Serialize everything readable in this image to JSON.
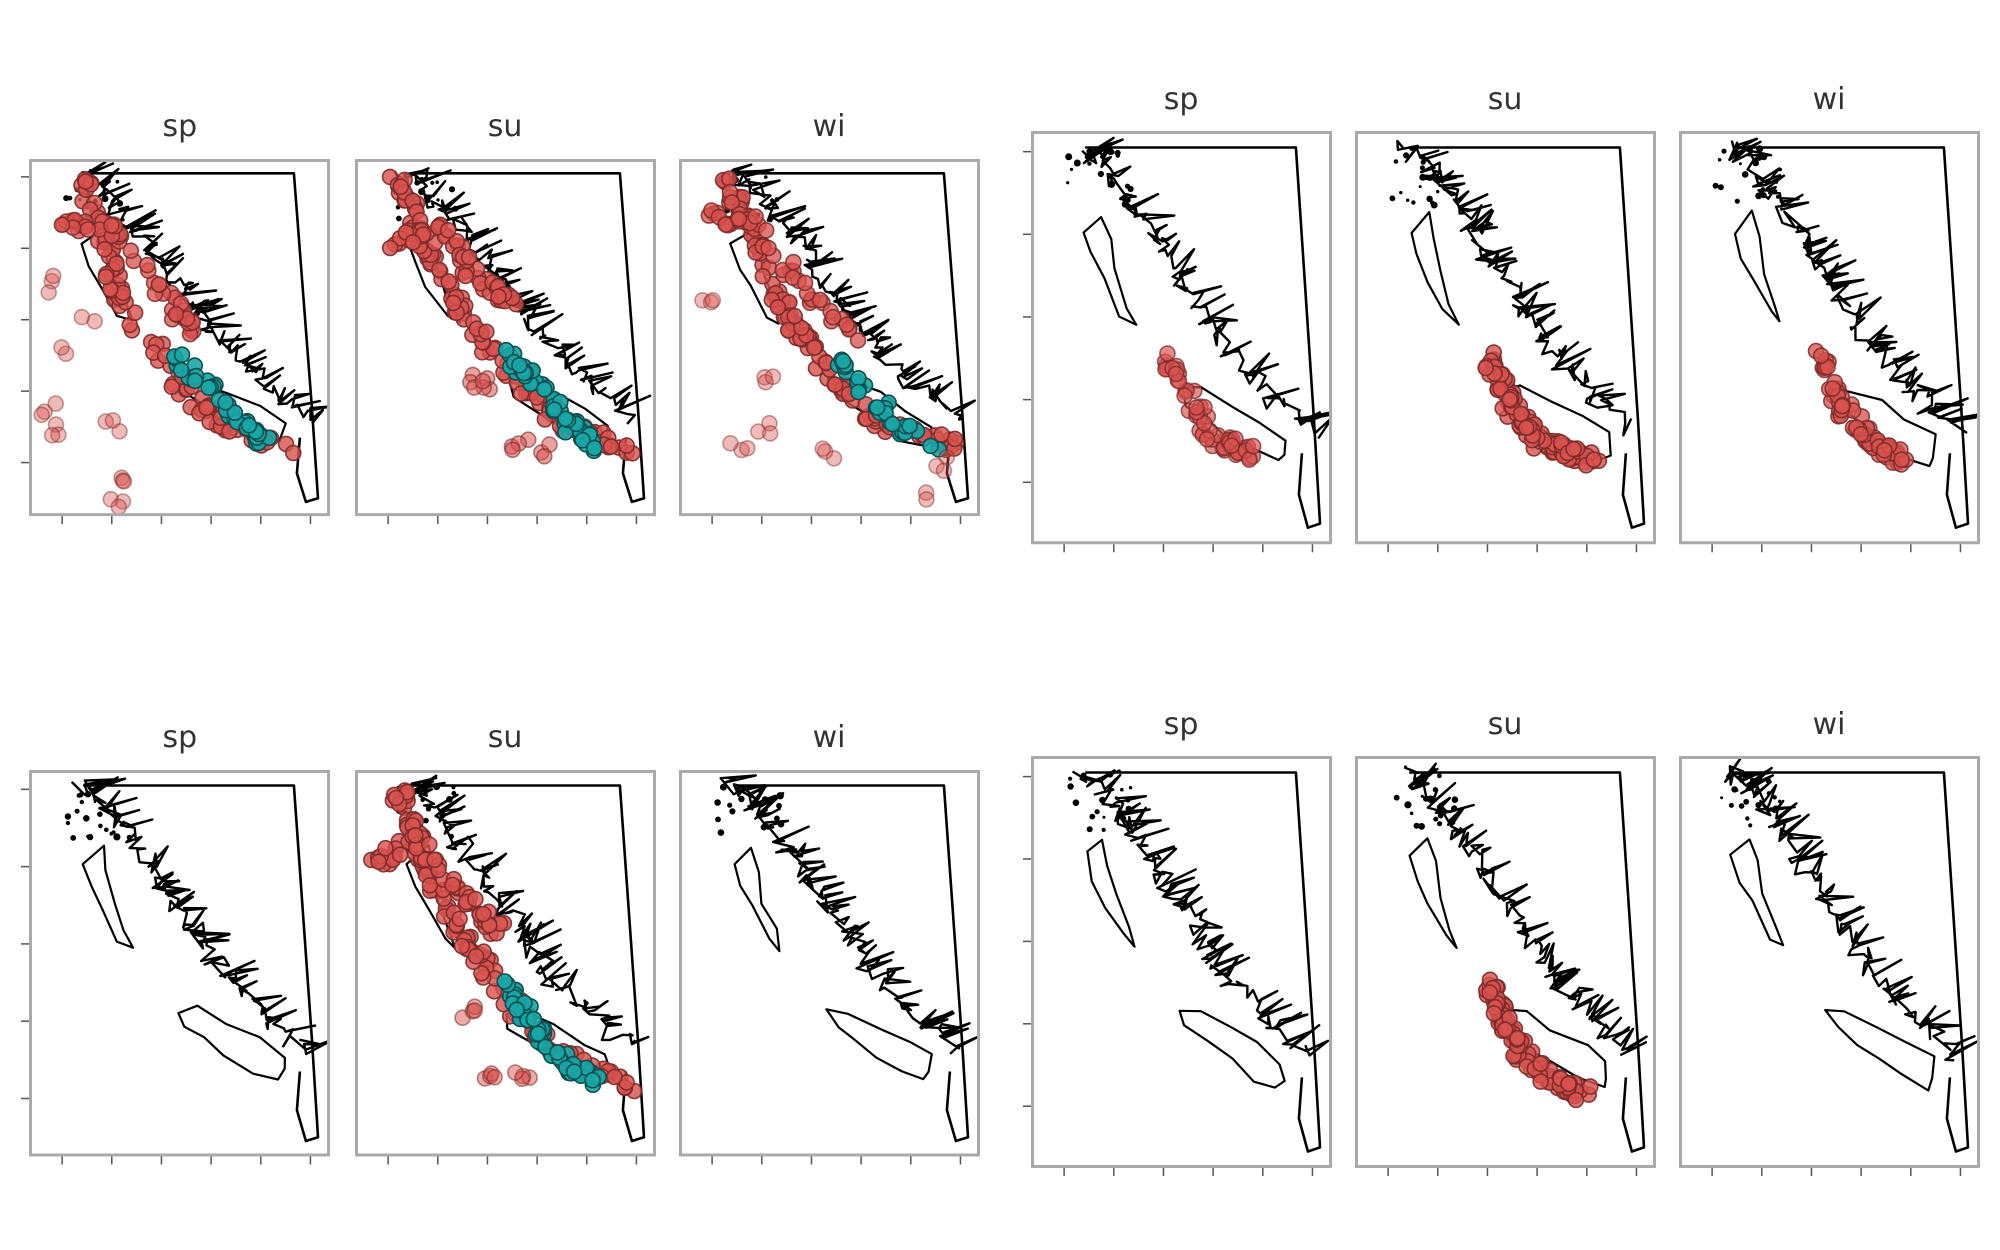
{
  "figure_groups": [
    {
      "name": "group-top-left",
      "panels": [
        {
          "title": "sp",
          "seed": 11,
          "clusters": [
            {
              "color": "red",
              "alpha": 0.9,
              "count": 95,
              "pts": [
                [
                  0.17,
                  0.05
                ],
                [
                  0.25,
                  0.22
                ],
                [
                  0.3,
                  0.4
                ],
                [
                  0.5,
                  0.62
                ],
                [
                  0.62,
                  0.74
                ],
                [
                  0.88,
                  0.82
                ]
              ]
            },
            {
              "color": "red",
              "alpha": 0.85,
              "count": 50,
              "pts": [
                [
                  0.1,
                  0.18
                ],
                [
                  0.28,
                  0.2
                ],
                [
                  0.42,
                  0.35
                ],
                [
                  0.55,
                  0.48
                ]
              ]
            },
            {
              "color": "teal",
              "alpha": 1.0,
              "count": 40,
              "pts": [
                [
                  0.48,
                  0.55
                ],
                [
                  0.62,
                  0.66
                ],
                [
                  0.72,
                  0.75
                ],
                [
                  0.78,
                  0.78
                ]
              ]
            },
            {
              "color": "red",
              "alpha": 0.45,
              "count": 22,
              "scatter": true,
              "pts": [
                [
                  0.06,
                  0.35
                ],
                [
                  0.06,
                  0.7
                ],
                [
                  0.1,
                  0.75
                ],
                [
                  0.28,
                  0.75
                ],
                [
                  0.3,
                  0.88
                ],
                [
                  0.3,
                  0.95
                ],
                [
                  0.2,
                  0.45
                ],
                [
                  0.12,
                  0.55
                ]
              ]
            }
          ]
        },
        {
          "title": "su",
          "seed": 23,
          "clusters": [
            {
              "color": "red",
              "alpha": 0.9,
              "count": 110,
              "pts": [
                [
                  0.14,
                  0.05
                ],
                [
                  0.22,
                  0.22
                ],
                [
                  0.35,
                  0.42
                ],
                [
                  0.52,
                  0.6
                ],
                [
                  0.65,
                  0.72
                ],
                [
                  0.92,
                  0.82
                ]
              ]
            },
            {
              "color": "red",
              "alpha": 0.9,
              "count": 50,
              "pts": [
                [
                  0.1,
                  0.25
                ],
                [
                  0.28,
                  0.18
                ],
                [
                  0.42,
                  0.35
                ],
                [
                  0.52,
                  0.4
                ]
              ]
            },
            {
              "color": "teal",
              "alpha": 1.0,
              "count": 55,
              "pts": [
                [
                  0.52,
                  0.55
                ],
                [
                  0.62,
                  0.65
                ],
                [
                  0.72,
                  0.75
                ],
                [
                  0.8,
                  0.8
                ]
              ]
            },
            {
              "color": "red",
              "alpha": 0.6,
              "count": 14,
              "scatter": true,
              "pts": [
                [
                  0.45,
                  0.62
                ],
                [
                  0.55,
                  0.8
                ],
                [
                  0.62,
                  0.82
                ],
                [
                  0.4,
                  0.62
                ]
              ]
            }
          ]
        },
        {
          "title": "wi",
          "seed": 37,
          "clusters": [
            {
              "color": "red",
              "alpha": 0.9,
              "count": 110,
              "pts": [
                [
                  0.15,
                  0.05
                ],
                [
                  0.25,
                  0.22
                ],
                [
                  0.35,
                  0.42
                ],
                [
                  0.52,
                  0.62
                ],
                [
                  0.68,
                  0.75
                ],
                [
                  0.92,
                  0.8
                ]
              ]
            },
            {
              "color": "red",
              "alpha": 0.85,
              "count": 45,
              "pts": [
                [
                  0.1,
                  0.16
                ],
                [
                  0.26,
                  0.18
                ],
                [
                  0.4,
                  0.36
                ],
                [
                  0.58,
                  0.5
                ]
              ]
            },
            {
              "color": "teal",
              "alpha": 1.0,
              "count": 30,
              "pts": [
                [
                  0.52,
                  0.56
                ],
                [
                  0.64,
                  0.66
                ],
                [
                  0.74,
                  0.76
                ],
                [
                  0.86,
                  0.8
                ]
              ]
            },
            {
              "color": "red",
              "alpha": 0.45,
              "count": 20,
              "scatter": true,
              "pts": [
                [
                  0.3,
                  0.6
                ],
                [
                  0.2,
                  0.82
                ],
                [
                  0.28,
                  0.76
                ],
                [
                  0.1,
                  0.42
                ],
                [
                  0.5,
                  0.82
                ],
                [
                  0.88,
                  0.86
                ],
                [
                  0.85,
                  0.95
                ]
              ]
            }
          ]
        }
      ]
    },
    {
      "name": "group-top-right",
      "panels": [
        {
          "title": "sp",
          "seed": 41,
          "clusters": [
            {
              "color": "red",
              "alpha": 0.75,
              "count": 60,
              "pts": [
                [
                  0.44,
                  0.54
                ],
                [
                  0.52,
                  0.65
                ],
                [
                  0.62,
                  0.75
                ],
                [
                  0.74,
                  0.78
                ]
              ]
            }
          ]
        },
        {
          "title": "su",
          "seed": 53,
          "clusters": [
            {
              "color": "red",
              "alpha": 0.9,
              "count": 110,
              "pts": [
                [
                  0.44,
                  0.54
                ],
                [
                  0.52,
                  0.66
                ],
                [
                  0.62,
                  0.76
                ],
                [
                  0.8,
                  0.8
                ]
              ]
            }
          ]
        },
        {
          "title": "wi",
          "seed": 67,
          "clusters": [
            {
              "color": "red",
              "alpha": 0.85,
              "count": 80,
              "pts": [
                [
                  0.46,
                  0.54
                ],
                [
                  0.54,
                  0.66
                ],
                [
                  0.64,
                  0.76
                ],
                [
                  0.76,
                  0.8
                ]
              ]
            }
          ]
        }
      ]
    },
    {
      "name": "group-bottom-left",
      "panels": [
        {
          "title": "sp",
          "seed": 71,
          "clusters": []
        },
        {
          "title": "su",
          "seed": 83,
          "clusters": [
            {
              "color": "red",
              "alpha": 0.9,
              "count": 110,
              "pts": [
                [
                  0.14,
                  0.05
                ],
                [
                  0.22,
                  0.22
                ],
                [
                  0.35,
                  0.42
                ],
                [
                  0.52,
                  0.6
                ],
                [
                  0.65,
                  0.72
                ],
                [
                  0.92,
                  0.82
                ]
              ]
            },
            {
              "color": "red",
              "alpha": 0.9,
              "count": 55,
              "pts": [
                [
                  0.05,
                  0.25
                ],
                [
                  0.2,
                  0.18
                ],
                [
                  0.35,
                  0.32
                ],
                [
                  0.48,
                  0.42
                ]
              ]
            },
            {
              "color": "teal",
              "alpha": 1.0,
              "count": 60,
              "pts": [
                [
                  0.5,
                  0.55
                ],
                [
                  0.6,
                  0.66
                ],
                [
                  0.72,
                  0.78
                ],
                [
                  0.82,
                  0.8
                ]
              ]
            },
            {
              "color": "red",
              "alpha": 0.55,
              "count": 12,
              "scatter": true,
              "pts": [
                [
                  0.38,
                  0.62
                ],
                [
                  0.55,
                  0.8
                ],
                [
                  0.45,
                  0.78
                ]
              ]
            }
          ]
        },
        {
          "title": "wi",
          "seed": 97,
          "clusters": []
        }
      ]
    },
    {
      "name": "group-bottom-right",
      "panels": [
        {
          "title": "sp",
          "seed": 101,
          "clusters": []
        },
        {
          "title": "su",
          "seed": 113,
          "clusters": [
            {
              "color": "red",
              "alpha": 0.9,
              "count": 110,
              "pts": [
                [
                  0.44,
                  0.56
                ],
                [
                  0.52,
                  0.68
                ],
                [
                  0.62,
                  0.78
                ],
                [
                  0.76,
                  0.82
                ]
              ]
            }
          ]
        },
        {
          "title": "wi",
          "seed": 127,
          "clusters": []
        }
      ]
    }
  ],
  "colors": {
    "red_fill": "#d9534f",
    "red_stroke": "#7a2a28",
    "teal_fill": "#1aa6a6",
    "teal_stroke": "#0b4f50",
    "frame": "#aaaaaa",
    "coast": "#000000"
  }
}
